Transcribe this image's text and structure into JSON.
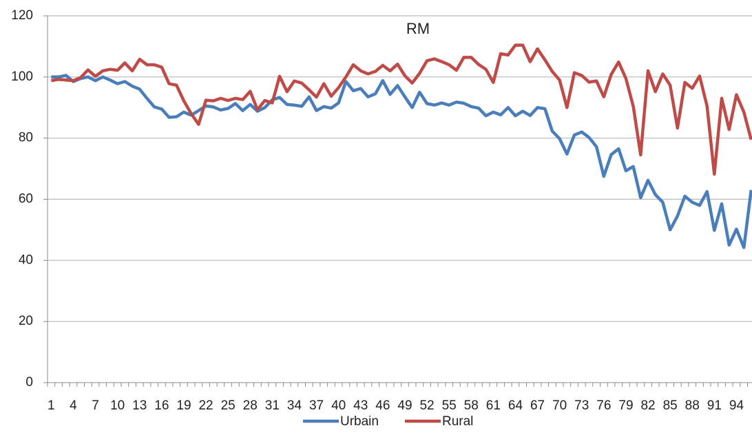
{
  "chart_data": {
    "type": "line",
    "title": "RM",
    "categories": [
      "1",
      null,
      null,
      "4",
      null,
      null,
      "7",
      null,
      null,
      "10",
      null,
      null,
      "13",
      null,
      null,
      "16",
      null,
      null,
      "19",
      null,
      null,
      "22",
      null,
      null,
      "25",
      null,
      null,
      "28",
      null,
      null,
      "31",
      null,
      null,
      "34",
      null,
      null,
      "37",
      null,
      null,
      "40",
      null,
      null,
      "43",
      null,
      null,
      "46",
      null,
      null,
      "49",
      null,
      null,
      "52",
      null,
      null,
      "55",
      null,
      null,
      "58",
      null,
      null,
      "61",
      null,
      null,
      "64",
      null,
      null,
      "67",
      null,
      null,
      "70",
      null,
      null,
      "73",
      null,
      null,
      "76",
      null,
      null,
      "79",
      null,
      null,
      "82",
      null,
      null,
      "85",
      null,
      null,
      "88",
      null,
      null,
      "91",
      null,
      null,
      "94",
      null,
      null
    ],
    "series": [
      {
        "name": "Urbain",
        "color": "#4a7ebb",
        "values": [
          100,
          100,
          100.5,
          98.5,
          99.5,
          100,
          98.8,
          100,
          99,
          97.8,
          98.5,
          97,
          96,
          93,
          90.2,
          89.5,
          86.8,
          87,
          88.5,
          87.5,
          89,
          90.5,
          90.2,
          89.2,
          89.7,
          91.3,
          89,
          91,
          88.8,
          90,
          92.5,
          93.3,
          91,
          90.8,
          90.4,
          93.5,
          89,
          90.3,
          89.8,
          91.5,
          98.5,
          95.5,
          96.2,
          93.5,
          94.5,
          98.8,
          94.3,
          97.2,
          93.5,
          90,
          95,
          91.3,
          90.8,
          91.5,
          90.8,
          91.8,
          91.4,
          90.3,
          89.8,
          87.3,
          88.5,
          87.6,
          90,
          87.3,
          88.8,
          87.4,
          90,
          89.6,
          82.3,
          79.8,
          74.8,
          81,
          82,
          80.2,
          77.2,
          67.5,
          74.6,
          76.5,
          69.3,
          70.7,
          60.5,
          66.2,
          61.5,
          59,
          50,
          54.5,
          61,
          59,
          58,
          62.5,
          49.8,
          58.5,
          45,
          50.2,
          44.2,
          63
        ]
      },
      {
        "name": "Rural",
        "color": "#be4b48",
        "values": [
          98.8,
          99.2,
          99,
          98.8,
          99.8,
          102.3,
          100.2,
          102,
          102.5,
          102.2,
          104.6,
          102,
          105.8,
          104,
          104,
          103.2,
          97.8,
          97.3,
          92.2,
          88,
          84.5,
          92.4,
          92.2,
          93,
          92.3,
          93,
          92.6,
          95.3,
          89.3,
          92.3,
          91.5,
          100.2,
          95.2,
          98.7,
          98,
          95.8,
          93.4,
          97.8,
          93.7,
          96.5,
          100,
          104,
          102,
          101,
          101.8,
          103.8,
          102,
          104.2,
          100.4,
          98,
          101.2,
          105.3,
          105.9,
          105,
          104,
          102.2,
          106.4,
          106.4,
          104.1,
          102.5,
          98.2,
          107.6,
          107.2,
          110.4,
          110.4,
          105,
          109.2,
          105.6,
          101.8,
          99,
          90,
          101.4,
          100.5,
          98.3,
          98.7,
          93.5,
          100.8,
          104.9,
          99.5,
          90.4,
          74.5,
          102,
          95.2,
          101,
          97.3,
          83.3,
          98.2,
          96.3,
          100.3,
          90.5,
          68.2,
          93,
          82.8,
          94.2,
          88.5,
          79.5
        ]
      }
    ],
    "ylim": [
      0,
      120
    ],
    "yticks": [
      0,
      20,
      40,
      60,
      80,
      100,
      120
    ],
    "grid": true,
    "legend": "bottom"
  }
}
